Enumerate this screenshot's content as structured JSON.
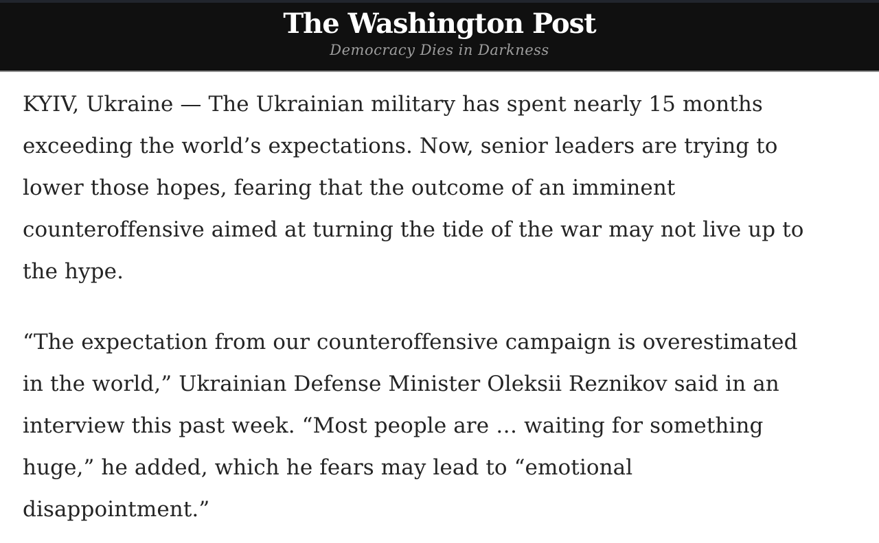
{
  "header": {
    "logo_text": "The Washington Post",
    "tagline": "Democracy Dies in Darkness",
    "colors": {
      "background": "#101010",
      "top_strip": "#21252d",
      "divider": "#8e8e8e",
      "logo": "#ffffff",
      "tagline": "#9e9e9e"
    }
  },
  "article": {
    "text_color": "#242424",
    "page_background": "#ffffff",
    "paragraphs": [
      {
        "lines": [
          "KYIV, Ukraine — The Ukrainian military has spent nearly 15 months",
          "exceeding the world’s expectations. Now, senior leaders are trying to",
          "lower those hopes, fearing that the outcome of an imminent",
          "counteroffensive aimed at turning the tide of the war may not live up to",
          "the hype."
        ]
      },
      {
        "lines": [
          "“The expectation from our counteroffensive campaign is overestimated",
          "in the world,” Ukrainian Defense Minister Oleksii Reznikov said in an",
          "interview this past week. “Most people are … waiting for something",
          "huge,” he added, which he fears may lead to “emotional",
          "disappointment.”"
        ]
      }
    ]
  }
}
